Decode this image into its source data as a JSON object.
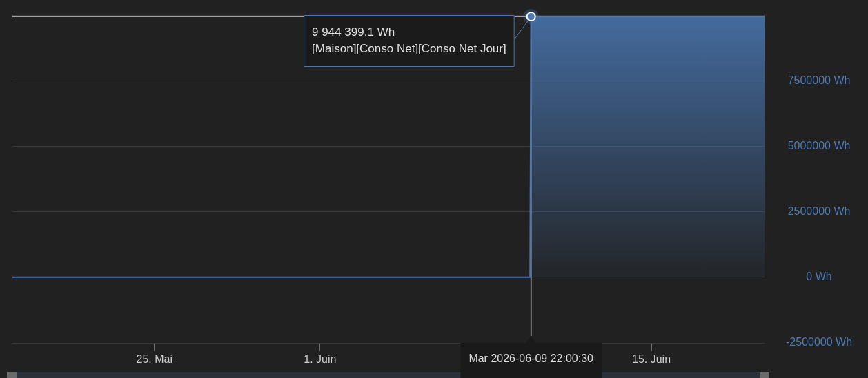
{
  "chart_data": {
    "type": "area",
    "x": [
      "2026-05-19T00:00",
      "2026-06-09T21:00",
      "2026-06-09T22:00",
      "2026-06-19T18:45"
    ],
    "values": [
      0,
      0,
      9944399.1,
      9944399.1
    ],
    "color": "#4a78b4",
    "xlim": [
      "2026-05-19T00:00",
      "2026-06-19T18:45"
    ],
    "xticks": [
      {
        "value": "2026-05-25",
        "label": "25. Mai"
      },
      {
        "value": "2026-06-01",
        "label": "1. Juin"
      },
      {
        "value": "2026-06-15",
        "label": "15. Juin"
      }
    ],
    "ylim": [
      -2500000,
      10000000
    ],
    "yticks": [
      {
        "value": -2500000,
        "label": "-2500000 Wh"
      },
      {
        "value": 0,
        "label": "0 Wh"
      },
      {
        "value": 2500000,
        "label": "2500000 Wh"
      },
      {
        "value": 5000000,
        "label": "5000000 Wh"
      },
      {
        "value": 7500000,
        "label": "7500000 Wh"
      },
      {
        "value": 10000000,
        "label": null
      }
    ],
    "grid": "y",
    "marker": "none",
    "ref_lines": [
      {
        "axis": "x",
        "value": "2026-06-09T22:00",
        "label": "Mar 2026-06-09 22:00:30",
        "color": "#cccccc"
      },
      {
        "axis": "y",
        "value": 9944399.1,
        "color": "#cccccc"
      }
    ],
    "annotations": [
      "9 944 399.1 Wh",
      {
        "text": "[Maison][Conso Net][Conso Net Jour]",
        "x": "2026-06-09T22:00",
        "y": 9944399.1
      }
    ]
  }
}
